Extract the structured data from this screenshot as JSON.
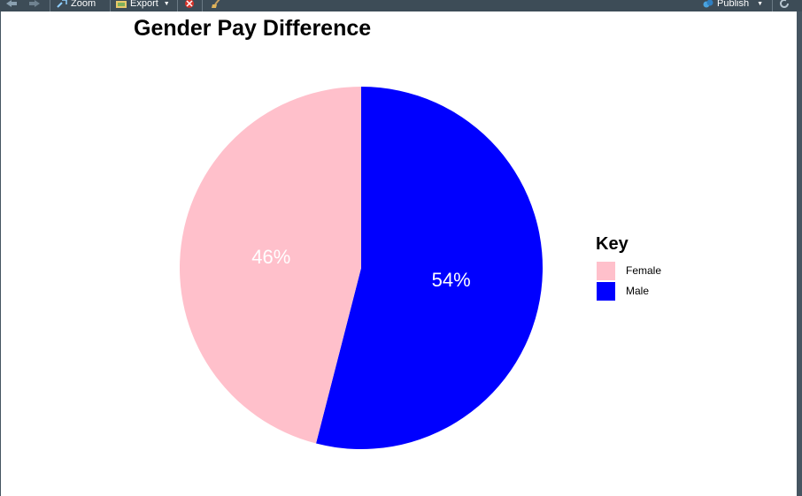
{
  "toolbar": {
    "zoom_label": "Zoom",
    "export_label": "Export",
    "publish_label": "Publish"
  },
  "chart_data": {
    "type": "pie",
    "title": "Gender Pay Difference",
    "legend_title": "Key",
    "legend_position": "right",
    "slices": [
      {
        "label": "Female",
        "value": 46,
        "text": "46%",
        "color": "#FFC0CB"
      },
      {
        "label": "Male",
        "value": 54,
        "text": "54%",
        "color": "#0000FF"
      }
    ]
  }
}
